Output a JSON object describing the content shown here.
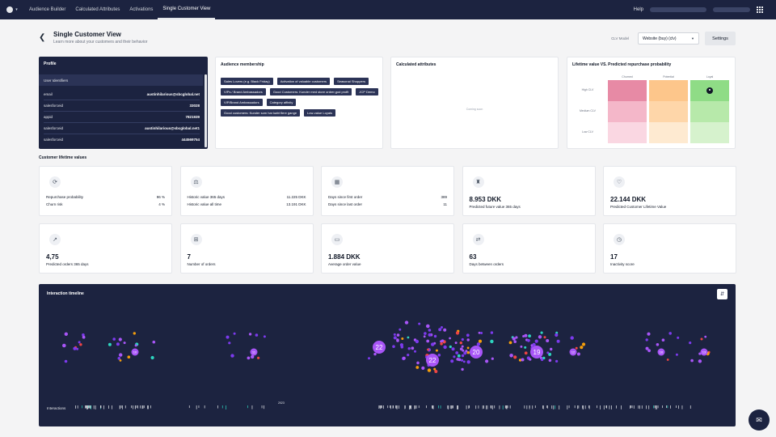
{
  "nav": {
    "tabs": [
      {
        "label": "Audience Builder"
      },
      {
        "label": "Calculated Attributes"
      },
      {
        "label": "Activations"
      },
      {
        "label": "Single Customer View"
      }
    ],
    "help_label": "Help"
  },
  "header": {
    "title": "Single Customer View",
    "subtitle": "Learn more about your customers and their behavior",
    "clv_model_label": "CLV Model",
    "clv_model_value": "Website (buy) (clv)",
    "settings_label": "Settings"
  },
  "profile": {
    "title": "Profile",
    "subheader": "User Identifiers",
    "rows": [
      {
        "key": "email",
        "value": "austinhilarious@sbcglobal.net"
      },
      {
        "key": "salesforceid",
        "value": "33028"
      },
      {
        "key": "appid",
        "value": "7821939"
      },
      {
        "key": "salesforceid",
        "value": "austinhilarious@sbcglobal.net1"
      },
      {
        "key": "salesforceid",
        "value": "444569754"
      }
    ]
  },
  "audience": {
    "title": "Audience membership",
    "pills": [
      "Sales Lovers (e.g. Black Friday)",
      "Activation of valuable customers",
      "Seasonal Shoppers",
      "VIPs / Brand Ambassadors",
      "Good Customers: Kunder med store ordrer,god profit",
      "JCP Demo",
      "VIP/Brand Ambassadors",
      "Category affinity",
      "Good customers: Kunder som har købt flere gange",
      "Low-value Loyals"
    ]
  },
  "calculated": {
    "title": "Calculated attributes",
    "placeholder": "Coming soon"
  },
  "lifetime": {
    "title": "Lifetime value VS. Predicted repurchase probability",
    "columns": [
      "Churned",
      "Potential",
      "Loyal"
    ],
    "rows": [
      "High CLV",
      "Medium CLV",
      "Low CLV"
    ],
    "colors": [
      [
        "#e78aa5",
        "#fdc68b",
        "#8fdc86"
      ],
      [
        "#f4b7c9",
        "#fed6a9",
        "#b7e9aa"
      ],
      [
        "#fad7e2",
        "#feead1",
        "#d6f2cd"
      ]
    ],
    "customer_cell": {
      "row": 0,
      "col": 2
    }
  },
  "clv_section_label": "Customer lifetime values",
  "metrics_row1": [
    {
      "icon": "repurchase-icon",
      "glyph": "⟳",
      "kv": [
        {
          "k": "Repurchase probability",
          "v": "96 %"
        },
        {
          "k": "Churn risk",
          "v": "4 %"
        }
      ]
    },
    {
      "icon": "historic-value-icon",
      "glyph": "⚖",
      "kv": [
        {
          "k": "Historic value 365 days",
          "v": "11.225 DKK"
        },
        {
          "k": "Historic value all time",
          "v": "13.191 DKK"
        }
      ]
    },
    {
      "icon": "calendar-icon",
      "glyph": "▦",
      "kv": [
        {
          "k": "Days since first order",
          "v": "389"
        },
        {
          "k": "Days since last order",
          "v": "11"
        }
      ]
    },
    {
      "icon": "future-value-icon",
      "glyph": "♜",
      "big": "8.953 DKK",
      "cap": "Predicted future value 365 days"
    },
    {
      "icon": "clv-icon",
      "glyph": "♡",
      "big": "22.144 DKK",
      "cap": "Predicted Customer Lifetime Value"
    }
  ],
  "metrics_row2": [
    {
      "icon": "orders-trend-icon",
      "glyph": "↗",
      "big": "4,75",
      "cap": "Predicted orders 365 days"
    },
    {
      "icon": "basket-icon",
      "glyph": "⊞",
      "big": "7",
      "cap": "Number of orders"
    },
    {
      "icon": "wallet-icon",
      "glyph": "▭",
      "big": "1.884 DKK",
      "cap": "Average order value"
    },
    {
      "icon": "interval-icon",
      "glyph": "⇄",
      "big": "63",
      "cap": "Days between orders"
    },
    {
      "icon": "inactivity-icon",
      "glyph": "◷",
      "big": "17",
      "cap": "Inactivity score"
    }
  ],
  "timeline": {
    "title": "Interaction timeline",
    "interactions_label": "Interactions",
    "year_label": "2023",
    "colors": {
      "purple": "#7c3aed",
      "light_purple": "#a855f7",
      "orange": "#f59e0b",
      "teal": "#2dd4bf",
      "red": "#ef4444"
    },
    "clusters": [
      {
        "label": "",
        "count_dots": 10
      },
      {
        "label": "10",
        "count_dots": 14
      },
      {
        "label": "11",
        "count_dots": 10
      },
      {
        "label": "22",
        "count_dots": 4
      },
      {
        "label": "22",
        "count_dots": 70
      },
      {
        "label": "20",
        "count_dots": 20
      },
      {
        "label": "19",
        "count_dots": 40
      },
      {
        "label": "12",
        "count_dots": 6
      },
      {
        "label": "16",
        "count_dots": 10
      },
      {
        "label": "13",
        "count_dots": 8
      }
    ]
  },
  "chat_icon": "chat-icon"
}
